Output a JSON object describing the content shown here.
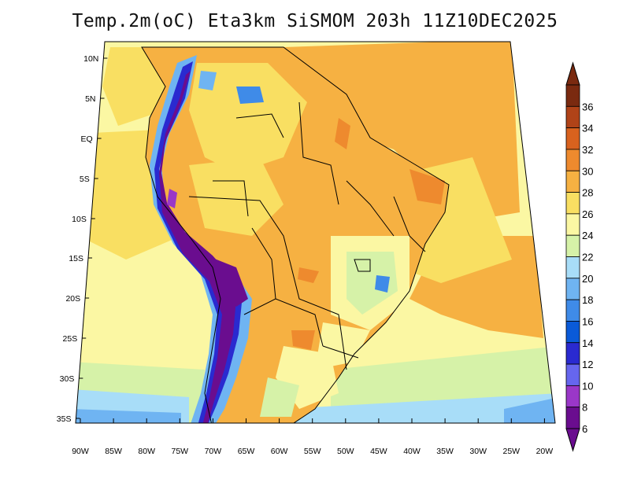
{
  "title": "Temp.2m(oC) Eta3km SiSMOM 203h 11Z10DEC2025",
  "colorbar": {
    "labels": [
      "6",
      "8",
      "10",
      "12",
      "14",
      "16",
      "18",
      "20",
      "22",
      "24",
      "26",
      "28",
      "30",
      "32",
      "34",
      "36"
    ],
    "colors": [
      "#6a0d8f",
      "#9a37c8",
      "#6666ee",
      "#2a2ad0",
      "#0a5ad8",
      "#3f8be8",
      "#6fb4f2",
      "#a8ddf8",
      "#d6f2a8",
      "#fbf7a3",
      "#f9df62",
      "#f6b142",
      "#ee8a2e",
      "#d8621e",
      "#b04318",
      "#7a2a10"
    ]
  },
  "axes": {
    "lon_labels": [
      "90W",
      "85W",
      "80W",
      "75W",
      "70W",
      "65W",
      "60W",
      "55W",
      "50W",
      "45W",
      "40W",
      "35W",
      "30W",
      "25W",
      "20W"
    ],
    "lat_labels": [
      "10N",
      "5N",
      "EQ",
      "5S",
      "10S",
      "15S",
      "20S",
      "25S",
      "30S",
      "35S"
    ]
  },
  "icons": {
    "colorbar_top": "triangle-up-icon",
    "colorbar_bottom": "triangle-down-icon"
  }
}
